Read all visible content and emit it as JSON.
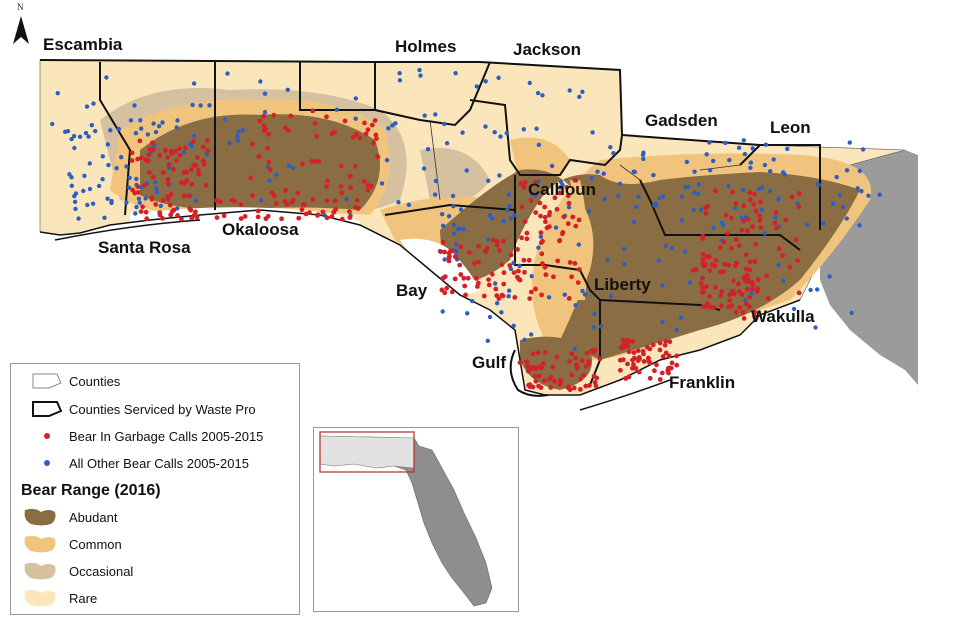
{
  "north_letter": "N",
  "county_labels": {
    "escambia": "Escambia",
    "holmes": "Holmes",
    "jackson": "Jackson",
    "gadsden": "Gadsden",
    "leon": "Leon",
    "santa_rosa": "Santa Rosa",
    "okaloosa": "Okaloosa",
    "calhoun": "Calhoun",
    "bay": "Bay",
    "liberty": "Liberty",
    "wakulla": "Wakulla",
    "gulf": "Gulf",
    "franklin": "Franklin"
  },
  "legend": {
    "counties": "Counties",
    "serviced": "Counties Serviced by Waste Pro",
    "garbage_calls": "Bear In Garbage Calls 2005-2015",
    "other_calls": "All Other Bear Calls 2005-2015",
    "range_title": "Bear Range (2016)",
    "abundant": "Abudant",
    "common": "Common",
    "occasional": "Occasional",
    "rare": "Rare"
  },
  "colors": {
    "abundant": "#8a6d43",
    "common": "#f0c47c",
    "occasional": "#d5c0a0",
    "rare": "#fbe6bb",
    "garbage_dot": "#d42027",
    "other_dot": "#2b5fc4",
    "outside": "#9b9b9b",
    "water": "#ffffff"
  }
}
